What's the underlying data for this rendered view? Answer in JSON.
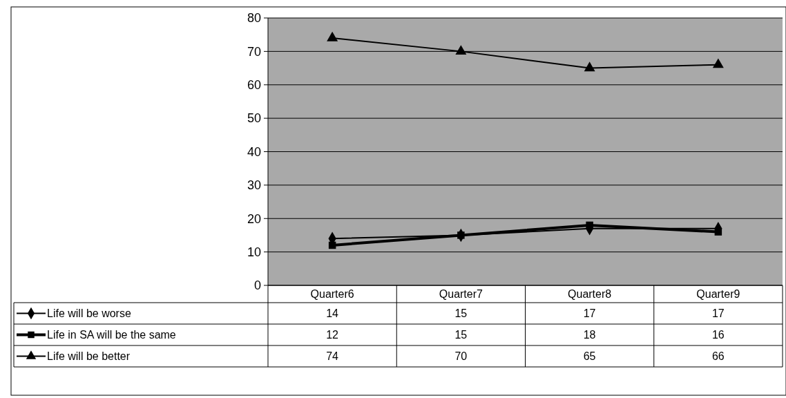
{
  "chart_data": {
    "type": "line",
    "categories": [
      "Quarter6",
      "Quarter7",
      "Quarter8",
      "Quarter9"
    ],
    "series": [
      {
        "name": "Life will be worse",
        "color": "#000000",
        "marker": "diamond",
        "values": [
          14,
          15,
          17,
          17
        ]
      },
      {
        "name": "Life in SA will be the same",
        "color": "#000000",
        "marker": "square",
        "values": [
          12,
          15,
          18,
          16
        ]
      },
      {
        "name": "Life will be better",
        "color": "#000000",
        "marker": "triangle",
        "values": [
          74,
          70,
          65,
          66
        ]
      }
    ],
    "ylim": [
      0,
      80
    ],
    "yticks": [
      0,
      10,
      20,
      30,
      40,
      50,
      60,
      70,
      80
    ],
    "grid": "y",
    "legend": "bottom",
    "data_labels": true
  }
}
